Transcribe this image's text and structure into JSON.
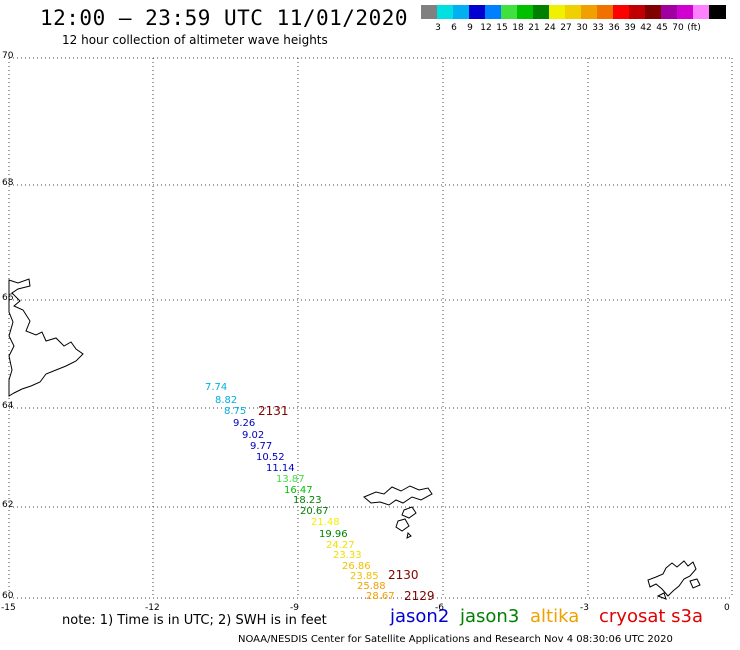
{
  "title": "12:00 – 23:59 UTC 11/01/2020",
  "subtitle": "12 hour collection of altimeter wave heights",
  "legend": {
    "colors": [
      "#808080",
      "#00e0e0",
      "#00b0f0",
      "#0000d0",
      "#0080ff",
      "#40e040",
      "#00c000",
      "#008000",
      "#f0f000",
      "#f0d000",
      "#f0a000",
      "#f07000",
      "#ff0000",
      "#c00000",
      "#800000",
      "#a000a0",
      "#d000d0",
      "#ff80ff",
      "#000000"
    ],
    "labels": [
      "3",
      "6",
      "9",
      "12",
      "15",
      "18",
      "21",
      "24",
      "27",
      "30",
      "33",
      "36",
      "39",
      "42",
      "45",
      "70",
      "(ft)"
    ]
  },
  "map": {
    "lat_labels": [
      "70",
      "68",
      "66",
      "64",
      "62",
      "60"
    ],
    "lon_labels": [
      "-15",
      "-12",
      "-9",
      "-6",
      "-3",
      "0"
    ]
  },
  "swh_points": [
    {
      "v": "7.74",
      "c": "#00b0e0"
    },
    {
      "v": "8.82",
      "c": "#00b0e0"
    },
    {
      "v": "8.75",
      "c": "#00b0e0"
    },
    {
      "v": "9.26",
      "c": "#0000c0"
    },
    {
      "v": "9.02",
      "c": "#0000c0"
    },
    {
      "v": "9.77",
      "c": "#0000c0"
    },
    {
      "v": "10.52",
      "c": "#0000c0"
    },
    {
      "v": "11.14",
      "c": "#0000c0"
    },
    {
      "v": "13.87",
      "c": "#40e040"
    },
    {
      "v": "16.47",
      "c": "#00c000"
    },
    {
      "v": "18.23",
      "c": "#008000"
    },
    {
      "v": "20.67",
      "c": "#008000"
    },
    {
      "v": "21.48",
      "c": "#f0f000"
    },
    {
      "v": "19.96",
      "c": "#008000"
    },
    {
      "v": "24.27",
      "c": "#f0e000"
    },
    {
      "v": "23.33",
      "c": "#f0e000"
    },
    {
      "v": "26.86",
      "c": "#f0c000"
    },
    {
      "v": "23.85",
      "c": "#f0c000"
    },
    {
      "v": "25.88",
      "c": "#f0a000"
    },
    {
      "v": "28.67",
      "c": "#f0a000"
    }
  ],
  "track_times": [
    "2131",
    "2130",
    "2129"
  ],
  "note": "note: 1) Time is in UTC; 2) SWH is in feet",
  "satellites": [
    {
      "name": "jason2",
      "color": "#0000d0"
    },
    {
      "name": "jason3",
      "color": "#008000"
    },
    {
      "name": "altika",
      "color": "#f0a000"
    },
    {
      "name": "cryosat s3a",
      "color": "#e00000"
    }
  ],
  "footer": "NOAA/NESDIS Center for Satellite Applications and Research    Nov  4 08:30:06 UTC 2020"
}
